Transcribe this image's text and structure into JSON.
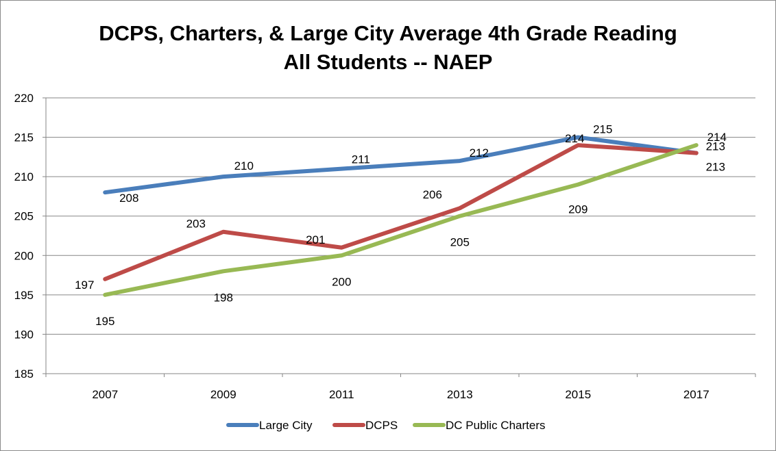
{
  "chart_data": {
    "type": "line",
    "title_lines": [
      "DCPS, Charters, & Large City Average 4th Grade Reading",
      "All Students -- NAEP"
    ],
    "categories": [
      "2007",
      "2009",
      "2011",
      "2013",
      "2015",
      "2017"
    ],
    "ylim": [
      185,
      220
    ],
    "yticks": [
      "185",
      "190",
      "195",
      "200",
      "205",
      "210",
      "215",
      "220"
    ],
    "grid": true,
    "legend_position": "bottom",
    "series": [
      {
        "name": "Large City",
        "color": "#4a7ebb",
        "values": [
          208,
          210,
          211,
          212,
          215,
          213
        ]
      },
      {
        "name": "DCPS",
        "color": "#be4b48",
        "values": [
          197,
          203,
          201,
          206,
          214,
          213
        ]
      },
      {
        "name": "DC Public Charters",
        "color": "#98b954",
        "values": [
          195,
          198,
          200,
          205,
          209,
          214
        ]
      }
    ]
  }
}
